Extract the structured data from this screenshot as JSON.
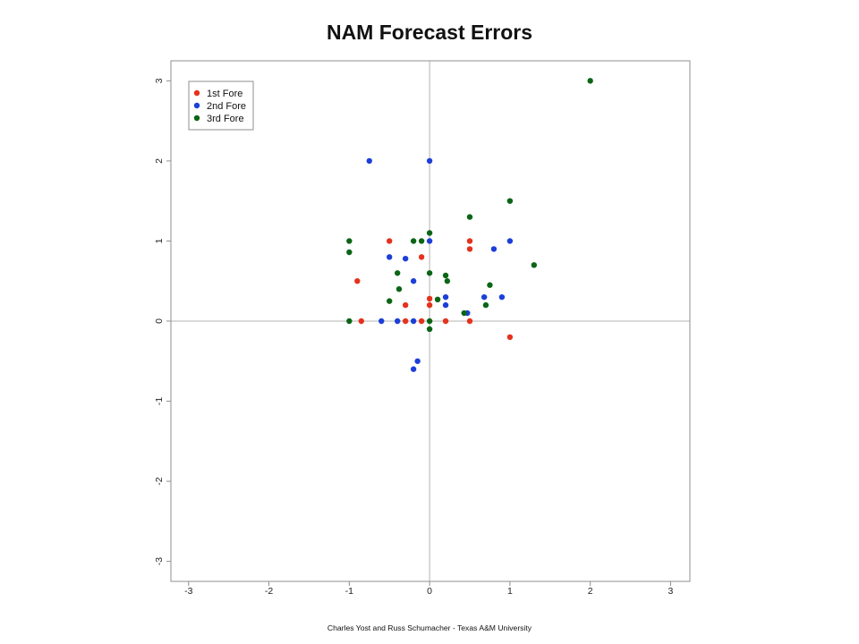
{
  "footer": {
    "text": "Charles Yost and Russ Schumacher - Texas A&M University"
  },
  "chart_data": {
    "type": "scatter",
    "title": "NAM Forecast Errors",
    "xlabel": "",
    "ylabel": "",
    "xlim": [
      -3.22,
      3.24
    ],
    "ylim": [
      -3.25,
      3.25
    ],
    "xticks": [
      -3,
      -2,
      -1,
      0,
      1,
      2,
      3
    ],
    "yticks": [
      -3,
      -2,
      -1,
      0,
      1,
      2,
      3
    ],
    "grid": false,
    "reference_lines": {
      "x": 0,
      "y": 0
    },
    "legend": {
      "placement": "top-left"
    },
    "frame_color": "#8f8f8f",
    "reference_line_color": "#b3b3b3",
    "series": [
      {
        "name": "1st Fore",
        "color": "#e5321d",
        "points": [
          [
            -0.5,
            1.0
          ],
          [
            -0.9,
            0.5
          ],
          [
            -0.85,
            0
          ],
          [
            -0.3,
            0.2
          ],
          [
            -0.3,
            0
          ],
          [
            -0.1,
            0.8
          ],
          [
            -0.1,
            0
          ],
          [
            0,
            0.28
          ],
          [
            0,
            0.2
          ],
          [
            0.2,
            0
          ],
          [
            0.5,
            1.0
          ],
          [
            0.5,
            0.9
          ],
          [
            0.5,
            0
          ],
          [
            1.0,
            -0.2
          ]
        ]
      },
      {
        "name": "2nd Fore",
        "color": "#1c3fd9",
        "points": [
          [
            -0.75,
            2.0
          ],
          [
            0,
            2.0
          ],
          [
            0,
            1.0
          ],
          [
            1.0,
            1.0
          ],
          [
            -0.5,
            0.8
          ],
          [
            -0.3,
            0.78
          ],
          [
            0.8,
            0.9
          ],
          [
            -0.2,
            0.5
          ],
          [
            0.2,
            0.3
          ],
          [
            0.2,
            0.2
          ],
          [
            0.68,
            0.3
          ],
          [
            0.9,
            0.3
          ],
          [
            -0.6,
            0
          ],
          [
            -0.4,
            0
          ],
          [
            -0.2,
            0
          ],
          [
            0.47,
            0.1
          ],
          [
            -0.15,
            -0.5
          ],
          [
            -0.2,
            -0.6
          ]
        ]
      },
      {
        "name": "3rd Fore",
        "color": "#0b6516",
        "points": [
          [
            2.0,
            3.0
          ],
          [
            1.0,
            1.5
          ],
          [
            0.5,
            1.3
          ],
          [
            1.3,
            0.7
          ],
          [
            -1.0,
            1.0
          ],
          [
            -1.0,
            0.86
          ],
          [
            -0.2,
            1.0
          ],
          [
            -0.1,
            1.0
          ],
          [
            0,
            1.1
          ],
          [
            -0.4,
            0.6
          ],
          [
            0,
            0.6
          ],
          [
            0.2,
            0.57
          ],
          [
            0.22,
            0.5
          ],
          [
            -0.38,
            0.4
          ],
          [
            -0.5,
            0.25
          ],
          [
            0.1,
            0.27
          ],
          [
            0.75,
            0.45
          ],
          [
            0.7,
            0.2
          ],
          [
            0.43,
            0.1
          ],
          [
            -1.0,
            0
          ],
          [
            0,
            0
          ],
          [
            0,
            -0.1
          ]
        ]
      }
    ]
  }
}
